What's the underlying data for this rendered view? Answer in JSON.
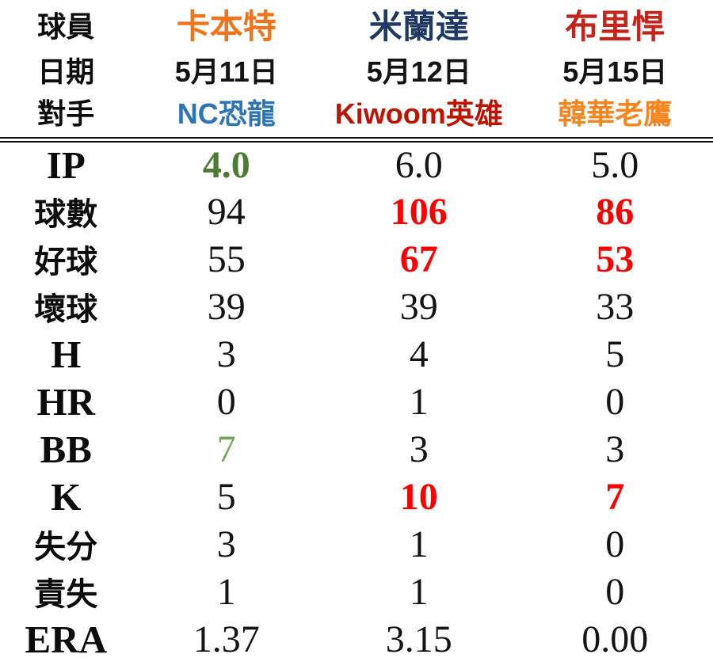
{
  "colors": {
    "player1": "#F0741B",
    "player2": "#1F3864",
    "player3": "#C3241C",
    "opp1": "#2E75B6",
    "opp2": "#BE1300",
    "opp3": "#F5861F",
    "red": "#FB0000",
    "green": "#77A456",
    "greenbold": "#4E7B34",
    "ink": "#141414"
  },
  "table": {
    "header_rows": [
      {
        "label": "球員",
        "values": [
          {
            "text": "卡本特",
            "tone": "player1"
          },
          {
            "text": "米蘭達",
            "tone": "player2"
          },
          {
            "text": "布里悍",
            "tone": "player3"
          }
        ]
      },
      {
        "label": "日期",
        "values": [
          {
            "text": "5月11日"
          },
          {
            "text": "5月12日"
          },
          {
            "text": "5月15日"
          }
        ]
      },
      {
        "label": "對手",
        "values": [
          {
            "text": "NC恐龍",
            "tone": "opp1"
          },
          {
            "text": "Kiwoom英雄",
            "tone": "opp2"
          },
          {
            "text": "韓華老鷹",
            "tone": "opp3"
          }
        ]
      }
    ],
    "stat_rows": [
      {
        "label": "IP",
        "values": [
          {
            "text": "4.0",
            "tone": "greenbold"
          },
          {
            "text": "6.0"
          },
          {
            "text": "5.0"
          }
        ]
      },
      {
        "label": "球數",
        "values": [
          {
            "text": "94"
          },
          {
            "text": "106",
            "tone": "red"
          },
          {
            "text": "86",
            "tone": "red"
          }
        ]
      },
      {
        "label": "好球",
        "values": [
          {
            "text": "55"
          },
          {
            "text": "67",
            "tone": "red"
          },
          {
            "text": "53",
            "tone": "red"
          }
        ]
      },
      {
        "label": "壞球",
        "values": [
          {
            "text": "39"
          },
          {
            "text": "39"
          },
          {
            "text": "33"
          }
        ]
      },
      {
        "label": "H",
        "values": [
          {
            "text": "3"
          },
          {
            "text": "4"
          },
          {
            "text": "5"
          }
        ]
      },
      {
        "label": "HR",
        "values": [
          {
            "text": "0"
          },
          {
            "text": "1"
          },
          {
            "text": "0"
          }
        ]
      },
      {
        "label": "BB",
        "values": [
          {
            "text": "7",
            "tone": "green"
          },
          {
            "text": "3"
          },
          {
            "text": "3"
          }
        ]
      },
      {
        "label": "K",
        "values": [
          {
            "text": "5"
          },
          {
            "text": "10",
            "tone": "red"
          },
          {
            "text": "7",
            "tone": "red"
          }
        ]
      },
      {
        "label": "失分",
        "values": [
          {
            "text": "3"
          },
          {
            "text": "1"
          },
          {
            "text": "0"
          }
        ]
      },
      {
        "label": "責失",
        "values": [
          {
            "text": "1"
          },
          {
            "text": "1"
          },
          {
            "text": "0"
          }
        ]
      },
      {
        "label": "ERA",
        "values": [
          {
            "text": "1.37"
          },
          {
            "text": "3.15"
          },
          {
            "text": "0.00"
          }
        ]
      }
    ]
  },
  "chart_data": {
    "type": "table",
    "title": "",
    "row_header_labels": [
      "球員",
      "日期",
      "對手"
    ],
    "players": [
      "卡本特",
      "米蘭達",
      "布里悍"
    ],
    "dates": [
      "5月11日",
      "5月12日",
      "5月15日"
    ],
    "opponents": [
      "NC恐龍",
      "Kiwoom英雄",
      "韓華老鷹"
    ],
    "stat_labels": [
      "IP",
      "球數",
      "好球",
      "壞球",
      "H",
      "HR",
      "BB",
      "K",
      "失分",
      "責失",
      "ERA"
    ],
    "values": [
      [
        4.0,
        6.0,
        5.0
      ],
      [
        94,
        106,
        86
      ],
      [
        55,
        67,
        53
      ],
      [
        39,
        39,
        33
      ],
      [
        3,
        4,
        5
      ],
      [
        0,
        1,
        0
      ],
      [
        7,
        3,
        3
      ],
      [
        5,
        10,
        7
      ],
      [
        3,
        1,
        0
      ],
      [
        1,
        1,
        0
      ],
      [
        1.37,
        3.15,
        0.0
      ]
    ],
    "highlights": {
      "red_bold": "career/game highs emphasized in red",
      "green": "low values emphasized in green"
    },
    "layout": {
      "grid": "none",
      "header_separator": "double-line"
    }
  }
}
